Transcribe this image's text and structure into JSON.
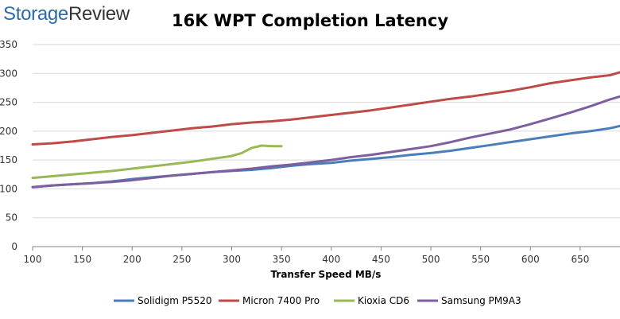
{
  "brand": {
    "word1": "Storage",
    "word2": "Review"
  },
  "chart_data": {
    "type": "line",
    "title": "16K WPT Completion Latency",
    "xlabel": "Transfer Speed MB/s",
    "ylabel": "",
    "xlim": [
      100,
      690
    ],
    "ylim": [
      0,
      350
    ],
    "xticks": [
      100,
      150,
      200,
      250,
      300,
      350,
      400,
      450,
      500,
      550,
      600,
      650
    ],
    "yticks": [
      0,
      50,
      100,
      150,
      200,
      250,
      300,
      350
    ],
    "grid": "horizontal",
    "legend": "bottom",
    "series": [
      {
        "name": "Solidigm P5520",
        "color": "#4a7ebb",
        "x": [
          100,
          120,
          140,
          160,
          180,
          200,
          220,
          240,
          260,
          280,
          300,
          320,
          340,
          360,
          380,
          400,
          420,
          440,
          460,
          480,
          500,
          520,
          540,
          560,
          580,
          600,
          620,
          640,
          660,
          680,
          690
        ],
        "y": [
          103,
          106,
          108,
          110,
          113,
          117,
          120,
          123,
          126,
          129,
          131,
          133,
          136,
          140,
          143,
          145,
          149,
          152,
          155,
          159,
          162,
          166,
          171,
          176,
          181,
          186,
          191,
          196,
          200,
          205,
          209
        ]
      },
      {
        "name": "Micron 7400 Pro",
        "color": "#be4b48",
        "x": [
          100,
          120,
          140,
          160,
          180,
          200,
          220,
          240,
          260,
          280,
          300,
          320,
          340,
          360,
          380,
          400,
          420,
          440,
          460,
          480,
          500,
          520,
          540,
          560,
          580,
          600,
          620,
          640,
          660,
          680,
          690
        ],
        "y": [
          177,
          179,
          182,
          186,
          190,
          193,
          197,
          201,
          205,
          208,
          212,
          215,
          217,
          220,
          224,
          228,
          232,
          236,
          241,
          246,
          251,
          256,
          260,
          265,
          270,
          276,
          283,
          288,
          293,
          297,
          302
        ]
      },
      {
        "name": "Kioxia CD6",
        "color": "#98b954",
        "x": [
          100,
          120,
          140,
          160,
          180,
          200,
          220,
          240,
          260,
          280,
          300,
          310,
          320,
          330,
          340,
          350
        ],
        "y": [
          119,
          122,
          125,
          128,
          131,
          135,
          139,
          143,
          147,
          152,
          157,
          162,
          171,
          175,
          174,
          174
        ]
      },
      {
        "name": "Samsung PM9A3",
        "color": "#7d5fa0",
        "x": [
          100,
          120,
          140,
          160,
          180,
          200,
          220,
          240,
          260,
          280,
          300,
          320,
          340,
          360,
          380,
          400,
          420,
          440,
          460,
          480,
          500,
          520,
          540,
          560,
          580,
          600,
          620,
          640,
          660,
          680,
          690
        ],
        "y": [
          103,
          106,
          108,
          110,
          112,
          115,
          119,
          123,
          126,
          129,
          132,
          135,
          139,
          142,
          146,
          150,
          155,
          159,
          164,
          169,
          174,
          181,
          189,
          196,
          203,
          212,
          222,
          232,
          243,
          255,
          260
        ]
      }
    ]
  }
}
